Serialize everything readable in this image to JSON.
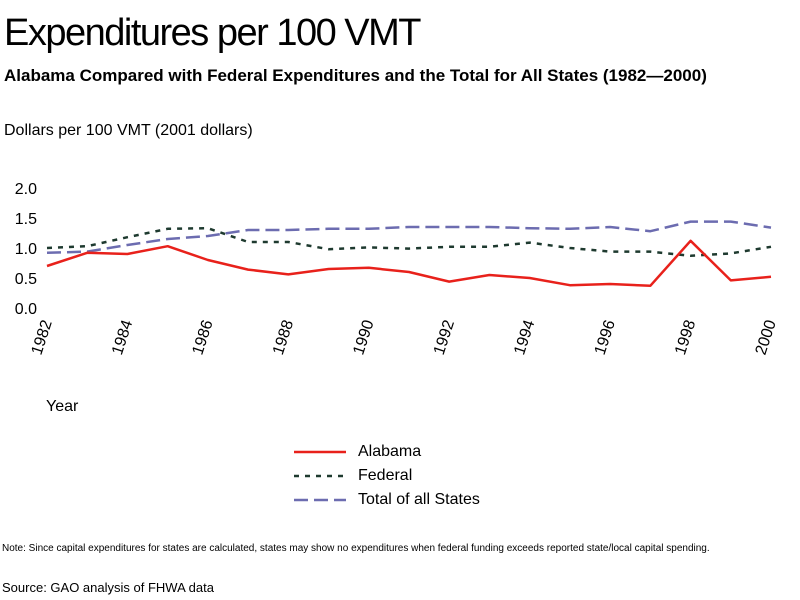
{
  "chart_data": {
    "type": "line",
    "title": "Expenditures per 100 VMT",
    "subtitle": "Alabama Compared with Federal Expenditures and the Total for All States (1982—2000)",
    "ylabel": "Dollars per 100 VMT (2001 dollars)",
    "xlabel": "Year",
    "x": [
      1982,
      1983,
      1984,
      1985,
      1986,
      1987,
      1988,
      1989,
      1990,
      1991,
      1992,
      1993,
      1994,
      1995,
      1996,
      1997,
      1998,
      1999,
      2000
    ],
    "xticks": [
      "1982",
      "1984",
      "1986",
      "1988",
      "1990",
      "1992",
      "1994",
      "1996",
      "1998",
      "2000"
    ],
    "yticks": [
      "2.0",
      "1.5",
      "1.0",
      "0.5",
      "0.0"
    ],
    "ylim": [
      0,
      2.0
    ],
    "grid": false,
    "legend_position": "bottom",
    "series": [
      {
        "name": "Alabama",
        "color": "#e8211b",
        "style": "solid",
        "values": [
          0.7,
          0.92,
          0.9,
          1.03,
          0.8,
          0.64,
          0.56,
          0.65,
          0.67,
          0.6,
          0.44,
          0.55,
          0.5,
          0.38,
          0.4,
          0.37,
          1.12,
          0.46,
          0.52
        ]
      },
      {
        "name": "Federal",
        "color": "#1e3a2f",
        "style": "dotted",
        "values": [
          1.0,
          1.03,
          1.18,
          1.32,
          1.33,
          1.1,
          1.1,
          0.98,
          1.01,
          0.99,
          1.02,
          1.02,
          1.09,
          1.0,
          0.94,
          0.94,
          0.87,
          0.91,
          1.02
        ]
      },
      {
        "name": "Total of all States",
        "color": "#6c6cb0",
        "style": "dashed",
        "values": [
          0.92,
          0.94,
          1.05,
          1.15,
          1.2,
          1.3,
          1.3,
          1.32,
          1.32,
          1.35,
          1.35,
          1.35,
          1.33,
          1.32,
          1.35,
          1.28,
          1.44,
          1.44,
          1.34
        ]
      }
    ]
  },
  "note": "Note: Since capital expenditures for states are calculated, states may show no expenditures when federal funding exceeds reported state/local capital spending.",
  "source": "Source: GAO analysis of FHWA data"
}
